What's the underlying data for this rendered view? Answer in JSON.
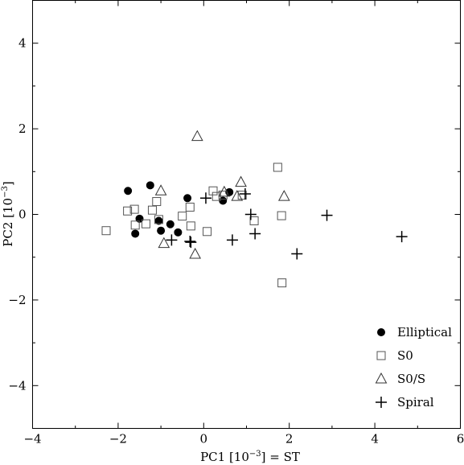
{
  "chart_data": {
    "type": "scatter",
    "xlabel": "PC1 [10",
    "xlabel_sup": "−3",
    "xlabel_suffix": "] = ST",
    "ylabel": "PC2 [10",
    "ylabel_sup": "−3",
    "ylabel_suffix": "]",
    "xlim": [
      -4,
      6
    ],
    "ylim": [
      -5,
      5
    ],
    "xticks": [
      -4,
      -2,
      0,
      2,
      4,
      6
    ],
    "yticks": [
      -4,
      -2,
      0,
      2,
      4
    ],
    "x_tick_labels": [
      "−4",
      "−2",
      "0",
      "2",
      "4",
      "6"
    ],
    "y_tick_labels": [
      "−4",
      "−2",
      "0",
      "2",
      "4"
    ],
    "legend_position": "bottom-right",
    "grid": false,
    "series": [
      {
        "name": "Elliptical",
        "marker": "filled-circle",
        "points": [
          [
            -1.77,
            0.55
          ],
          [
            -1.25,
            0.68
          ],
          [
            -1.6,
            -0.45
          ],
          [
            -1.5,
            -0.1
          ],
          [
            -1.05,
            -0.15
          ],
          [
            -1.0,
            -0.38
          ],
          [
            -0.78,
            -0.23
          ],
          [
            -0.6,
            -0.42
          ],
          [
            -0.38,
            0.38
          ],
          [
            0.45,
            0.32
          ],
          [
            0.6,
            0.52
          ]
        ]
      },
      {
        "name": "S0",
        "marker": "open-square",
        "points": [
          [
            -2.28,
            -0.38
          ],
          [
            -1.78,
            0.08
          ],
          [
            -1.62,
            0.12
          ],
          [
            -1.6,
            -0.25
          ],
          [
            -1.35,
            -0.22
          ],
          [
            -1.2,
            0.1
          ],
          [
            -1.1,
            0.3
          ],
          [
            -1.05,
            -0.12
          ],
          [
            -0.5,
            -0.04
          ],
          [
            -0.32,
            0.17
          ],
          [
            -0.3,
            -0.27
          ],
          [
            0.08,
            -0.4
          ],
          [
            0.22,
            0.55
          ],
          [
            0.3,
            0.42
          ],
          [
            0.45,
            0.45
          ],
          [
            0.9,
            0.45
          ],
          [
            1.18,
            -0.15
          ],
          [
            1.73,
            1.1
          ],
          [
            1.82,
            -0.03
          ],
          [
            1.83,
            -1.6
          ]
        ]
      },
      {
        "name": "S0/S",
        "marker": "open-triangle",
        "points": [
          [
            -1.0,
            0.55
          ],
          [
            -0.93,
            -0.68
          ],
          [
            -0.2,
            -0.93
          ],
          [
            -0.15,
            1.82
          ],
          [
            0.48,
            0.52
          ],
          [
            0.78,
            0.42
          ],
          [
            0.87,
            0.75
          ],
          [
            1.88,
            0.42
          ]
        ]
      },
      {
        "name": "Spiral",
        "marker": "plus",
        "points": [
          [
            -0.75,
            -0.6
          ],
          [
            -0.3,
            -0.65
          ],
          [
            -0.32,
            -0.63
          ],
          [
            0.05,
            0.38
          ],
          [
            0.67,
            -0.6
          ],
          [
            0.97,
            0.48
          ],
          [
            1.1,
            0.0
          ],
          [
            1.2,
            -0.45
          ],
          [
            2.18,
            -0.92
          ],
          [
            2.88,
            -0.02
          ],
          [
            4.63,
            -0.52
          ]
        ]
      }
    ]
  }
}
